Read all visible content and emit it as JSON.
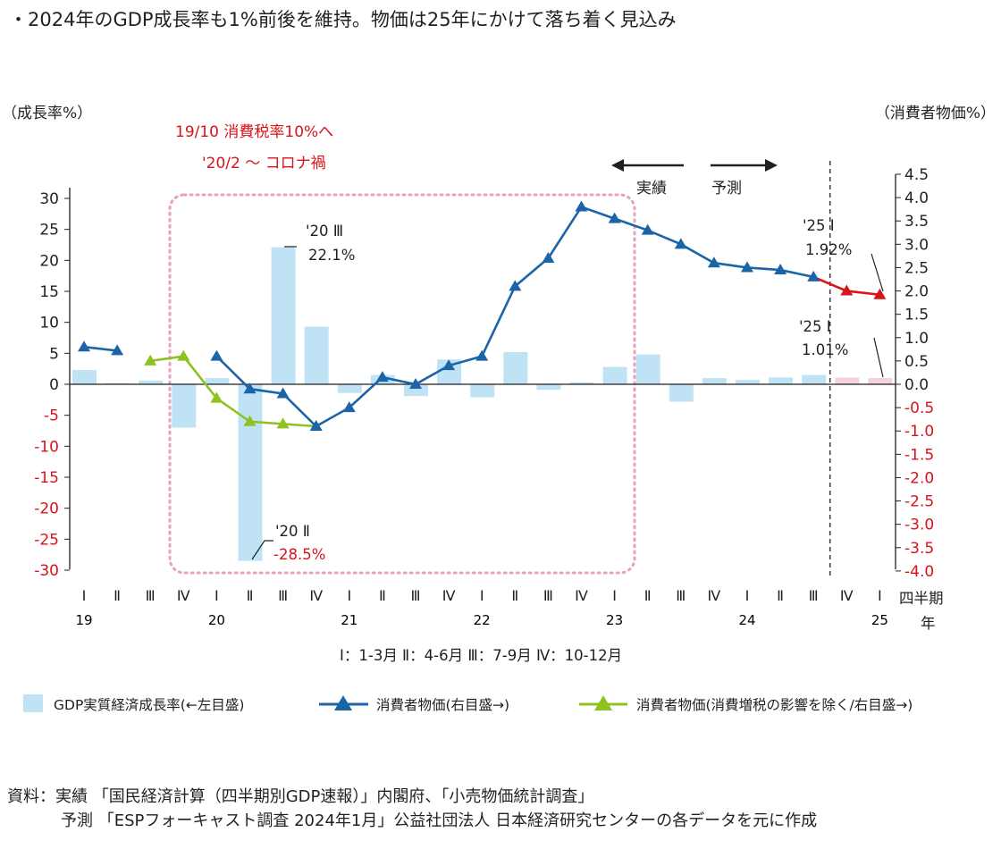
{
  "title": "・2024年のGDP成長率も1%前後を維持。物価は25年にかけて落ち着く見込み",
  "y_left_unit": "（成長率%）",
  "y_right_unit": "（消費者物価%）",
  "annotations": {
    "tax_hike": "19/10 消費税率10%へ",
    "corona": "'20/2 〜 コロナ禍",
    "actual": "実績",
    "forecast": "予測",
    "q3_20_label": "'20 Ⅲ",
    "q3_20_value": "22.1%",
    "q2_20_label": "'20 Ⅱ",
    "q2_20_value": "-28.5%",
    "q1_25_cpi_label": "'25 Ⅰ",
    "q1_25_cpi_value": "1.92%",
    "q1_25_gdp_label": "'25 Ⅰ",
    "q1_25_gdp_value": "1.01%"
  },
  "quarter_note": "Ⅰ：1-3月  Ⅱ：4-6月  Ⅲ：7-9月  Ⅳ：10-12月",
  "x_axis_quarter_title": "四半期",
  "x_axis_year_title": "年",
  "legend": {
    "gdp": "GDP実質経済成長率(←左目盛)",
    "cpi": "消費者物価(右目盛→)",
    "cpi_ex_tax": "消費者物価(消費増税の影響を除く/右目盛→)"
  },
  "source": {
    "line1": "資料：実績 「国民経済計算（四半期別GDP速報）」内閣府、「小売物価統計調査」",
    "line2": "予測 「ESPフォーキャスト調査 2024年1月」公益社団法人 日本経済研究センターの各データを元に作成"
  },
  "colors": {
    "gdp_actual": "#bfe3f5",
    "gdp_forecast": "#f3d3dc",
    "cpi_actual": "#1b64a8",
    "cpi_forecast": "#d7141a",
    "cpi_ex_tax": "#8dc21f",
    "covid_box": "#e8a2c0",
    "right_axis_negative": "#d7141a"
  },
  "chart_data": {
    "type": "bar+line",
    "categories": [
      "Ⅰ",
      "Ⅱ",
      "Ⅲ",
      "Ⅳ",
      "Ⅰ",
      "Ⅱ",
      "Ⅲ",
      "Ⅳ",
      "Ⅰ",
      "Ⅱ",
      "Ⅲ",
      "Ⅳ",
      "Ⅰ",
      "Ⅱ",
      "Ⅲ",
      "Ⅳ",
      "Ⅰ",
      "Ⅱ",
      "Ⅲ",
      "Ⅳ",
      "Ⅰ",
      "Ⅱ",
      "Ⅲ",
      "Ⅳ",
      "Ⅰ"
    ],
    "years": [
      {
        "label": "19",
        "index": 0
      },
      {
        "label": "20",
        "index": 4
      },
      {
        "label": "21",
        "index": 8
      },
      {
        "label": "22",
        "index": 12
      },
      {
        "label": "23",
        "index": 16
      },
      {
        "label": "24",
        "index": 20
      },
      {
        "label": "25",
        "index": 24
      }
    ],
    "forecast_start_index": 23,
    "y_left": {
      "min": -30,
      "max": 30,
      "ticks": [
        30,
        25,
        20,
        15,
        10,
        5,
        0,
        -5,
        -10,
        -15,
        -20,
        -25,
        -30
      ]
    },
    "y_right": {
      "min": -4.0,
      "max": 4.5,
      "ticks": [
        "4.5",
        "4.0",
        "3.5",
        "3.0",
        "2.5",
        "2.0",
        "1.5",
        "1.0",
        "0.5",
        "0.0",
        "-0.5",
        "-1.0",
        "-1.5",
        "-2.0",
        "-2.5",
        "-3.0",
        "-3.5",
        "-4.0"
      ]
    },
    "series": [
      {
        "name": "GDP実質経済成長率(←左目盛)",
        "type": "bar",
        "axis": "left",
        "values": [
          2.3,
          0.2,
          0.6,
          -7.0,
          1.0,
          -28.5,
          22.1,
          9.3,
          -1.4,
          1.5,
          -1.9,
          4.0,
          -2.1,
          5.2,
          -0.9,
          0.3,
          2.8,
          4.8,
          -2.8,
          1.0,
          0.7,
          1.1,
          1.5,
          1.1,
          1.01
        ]
      },
      {
        "name": "消費者物価(右目盛→)",
        "type": "line",
        "axis": "right",
        "start_index": 0,
        "values": [
          0.8,
          0.72,
          null,
          null,
          0.6,
          -0.1,
          -0.2,
          -0.9,
          -0.5,
          0.15,
          0.0,
          0.4,
          0.6,
          2.1,
          2.7,
          3.8,
          3.55,
          3.3,
          3.0,
          2.6,
          2.5,
          2.45,
          2.3,
          2.0,
          1.92
        ]
      },
      {
        "name": "消費者物価(消費増税の影響を除く/右目盛→)",
        "type": "line",
        "axis": "right",
        "values": [
          null,
          null,
          0.5,
          0.6,
          -0.3,
          -0.8,
          -0.85,
          -0.9,
          null,
          null,
          null,
          null,
          null,
          null,
          null,
          null,
          null,
          null,
          null,
          null,
          null,
          null,
          null,
          null,
          null
        ]
      }
    ]
  }
}
